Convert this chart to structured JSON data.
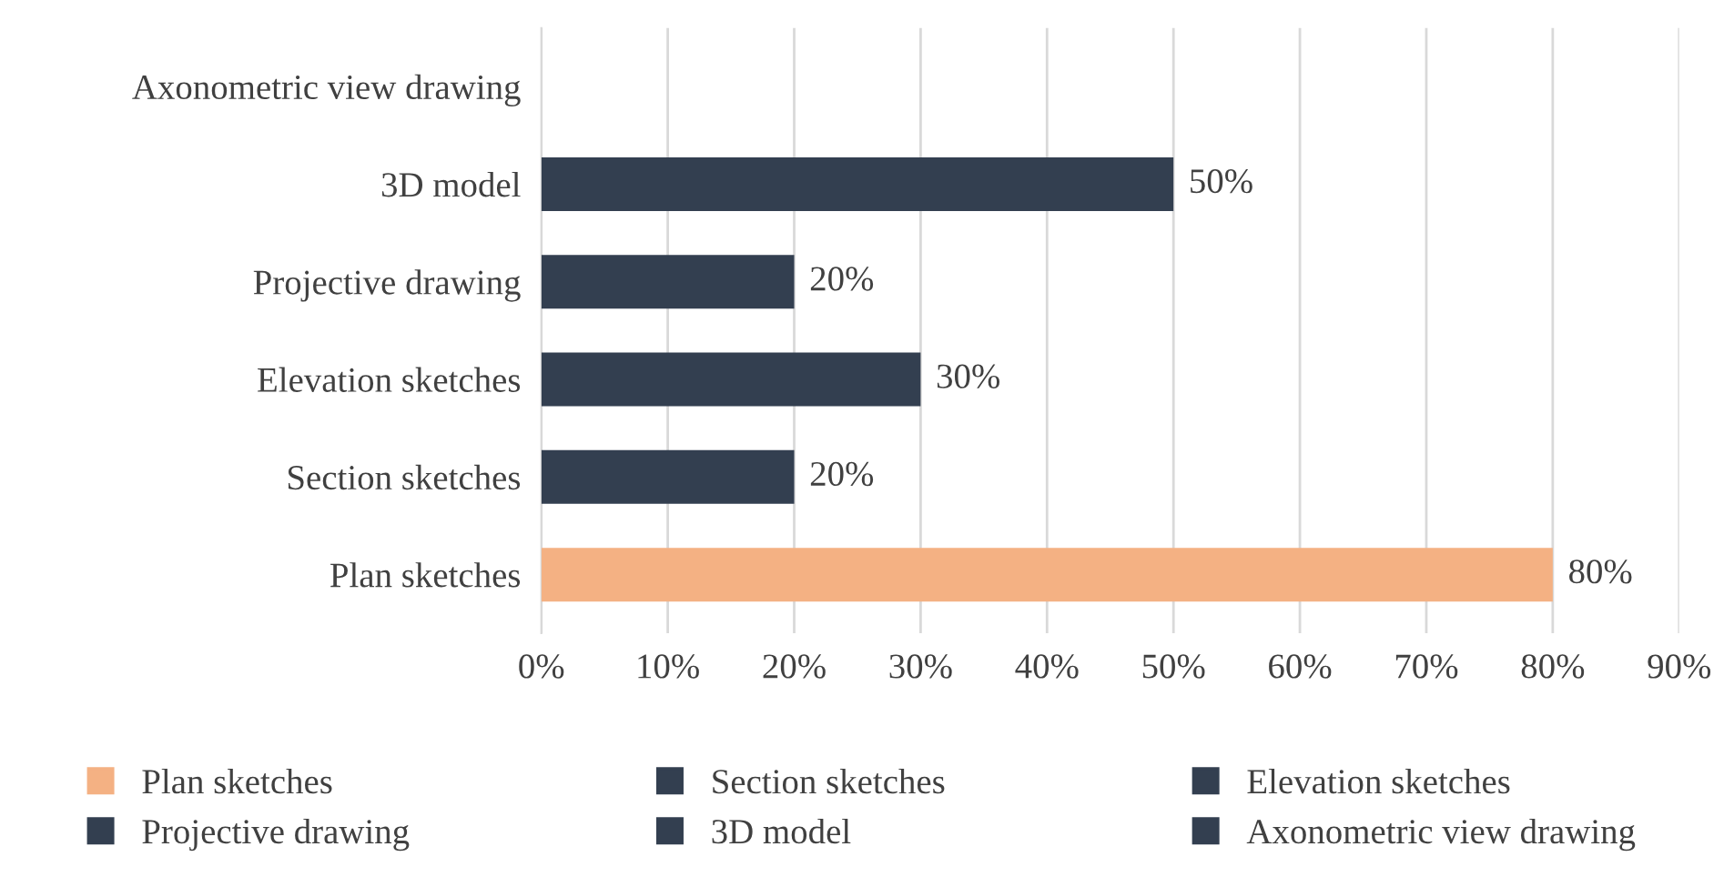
{
  "chart_data": {
    "type": "bar",
    "orientation": "horizontal",
    "categories": [
      "Axonometric view drawing",
      "3D model",
      "Projective drawing",
      "Elevation sketches",
      "Section sketches",
      "Plan sketches"
    ],
    "series": [
      {
        "name": "Plan sketches",
        "color": "#f4b183",
        "values": [
          null,
          null,
          null,
          null,
          null,
          80
        ],
        "value_labels": [
          null,
          null,
          null,
          null,
          null,
          "80%"
        ]
      },
      {
        "name": "Section sketches",
        "color": "#333f50",
        "values": [
          null,
          null,
          null,
          null,
          20,
          null
        ],
        "value_labels": [
          null,
          null,
          null,
          null,
          "20%",
          null
        ]
      },
      {
        "name": "Elevation sketches",
        "color": "#333f50",
        "values": [
          null,
          null,
          null,
          30,
          null,
          null
        ],
        "value_labels": [
          null,
          null,
          null,
          "30%",
          null,
          null
        ]
      },
      {
        "name": "Projective drawing",
        "color": "#333f50",
        "values": [
          null,
          null,
          20,
          null,
          null,
          null
        ],
        "value_labels": [
          null,
          null,
          "20%",
          null,
          null,
          null
        ]
      },
      {
        "name": "3D model",
        "color": "#333f50",
        "values": [
          null,
          50,
          null,
          null,
          null,
          null
        ],
        "value_labels": [
          null,
          "50%",
          null,
          null,
          null,
          null
        ]
      },
      {
        "name": "Axonometric view drawing",
        "color": "#333f50",
        "values": [
          0,
          null,
          null,
          null,
          null,
          null
        ],
        "value_labels": [
          null,
          null,
          null,
          null,
          null,
          null
        ]
      }
    ],
    "xlim": [
      0,
      90
    ],
    "xticks": [
      {
        "value": 0,
        "label": "0%"
      },
      {
        "value": 10,
        "label": "10%"
      },
      {
        "value": 20,
        "label": "20%"
      },
      {
        "value": 30,
        "label": "30%"
      },
      {
        "value": 40,
        "label": "40%"
      },
      {
        "value": 50,
        "label": "50%"
      },
      {
        "value": 60,
        "label": "60%"
      },
      {
        "value": 70,
        "label": "70%"
      },
      {
        "value": 80,
        "label": "80%"
      },
      {
        "value": 90,
        "label": "90%"
      }
    ],
    "grid": "x",
    "legend": "bottom"
  }
}
